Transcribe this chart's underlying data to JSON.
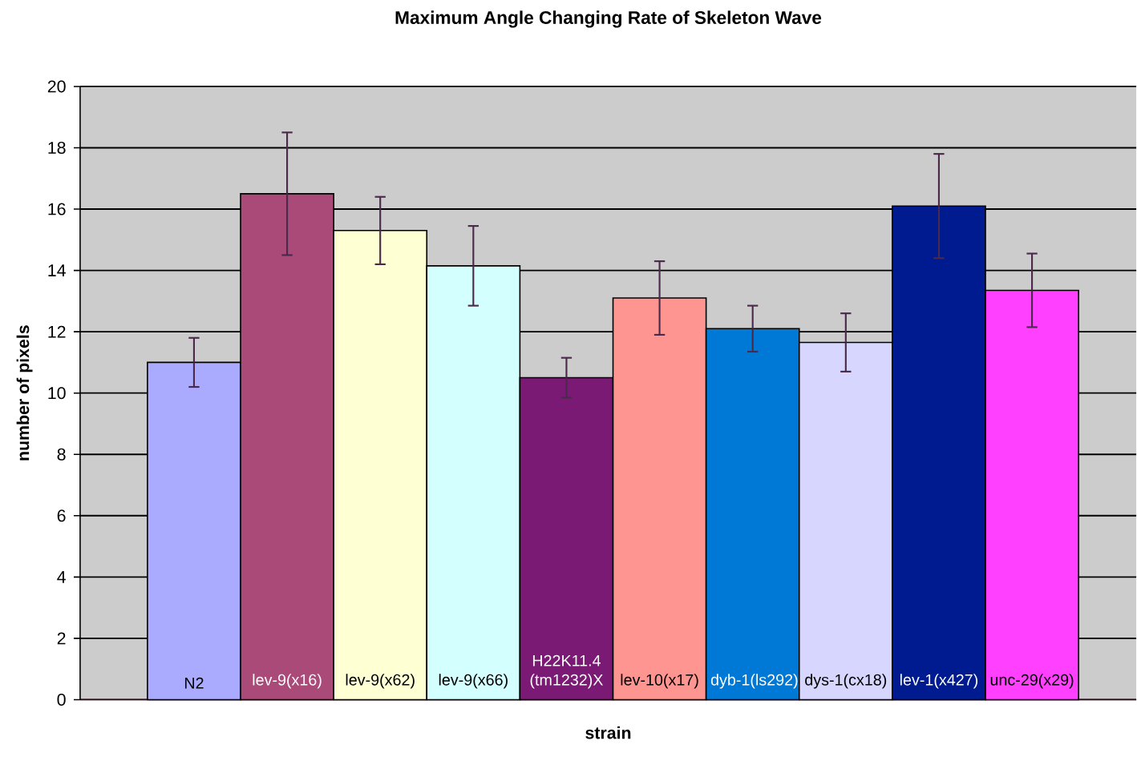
{
  "chart_data": {
    "type": "bar",
    "title": "Maximum Angle Changing Rate of Skeleton Wave",
    "xlabel": "strain",
    "ylabel": "number of pixels",
    "categories": [
      "N2",
      "lev-9(x16)",
      "lev-9(x62)",
      "lev-9(x66)",
      "H22K11.4 (tm1232)X",
      "lev-10(x17)",
      "dyb-1(ls292)",
      "dys-1(cx18)",
      "lev-1(x427)",
      "unc-29(x29)"
    ],
    "values": [
      11.0,
      16.5,
      15.3,
      14.15,
      10.5,
      13.1,
      12.1,
      11.65,
      16.1,
      13.35
    ],
    "errors": [
      0.8,
      2.0,
      1.1,
      1.3,
      0.65,
      1.2,
      0.75,
      0.95,
      1.7,
      1.2
    ],
    "colors": [
      "#aaaaff",
      "#a94a78",
      "#ffffd4",
      "#d4ffff",
      "#7b1a74",
      "#ff9590",
      "#0078d6",
      "#d6d6ff",
      "#001a90",
      "#ff40ff"
    ],
    "ylim": [
      0,
      20
    ],
    "yticks": [
      0,
      2,
      4,
      6,
      8,
      10,
      12,
      14,
      16,
      18,
      20
    ],
    "grid": "y"
  }
}
